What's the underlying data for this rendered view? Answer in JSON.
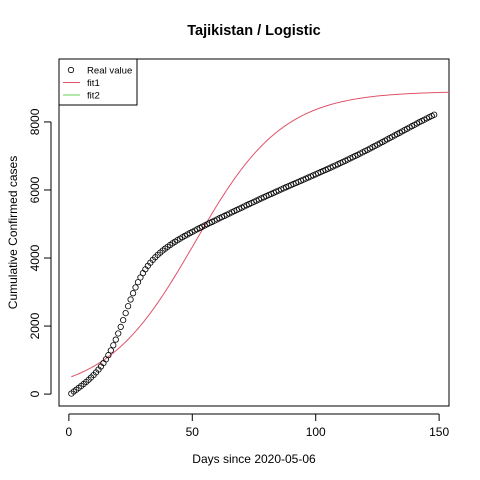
{
  "chart_data": {
    "type": "scatter",
    "title": "Tajikistan / Logistic",
    "xlabel": "Days since 2020-05-06",
    "ylabel": "Cumulative Confirmed cases",
    "xlim": [
      -4,
      154
    ],
    "ylim": [
      -350,
      9850
    ],
    "x_ticks": [
      0,
      50,
      100,
      150
    ],
    "y_ticks": [
      0,
      2000,
      4000,
      6000,
      8000
    ],
    "grid": false,
    "legend_position": "top-left",
    "legend": [
      {
        "label": "Real value",
        "symbol": "circle",
        "color": "#000000"
      },
      {
        "label": "fit1",
        "symbol": "line",
        "color": "#DF536B"
      },
      {
        "label": "fit2",
        "symbol": "line",
        "color": "#61D04F"
      }
    ],
    "series": [
      {
        "name": "Real value",
        "kind": "points",
        "color": "#000000",
        "x": [
          1,
          2,
          3,
          4,
          5,
          6,
          7,
          8,
          9,
          10,
          11,
          12,
          13,
          14,
          15,
          16,
          17,
          18,
          19,
          20,
          21,
          22,
          23,
          24,
          25,
          26,
          27,
          28,
          29,
          30,
          31,
          32,
          33,
          34,
          35,
          36,
          37,
          38,
          39,
          40,
          41,
          42,
          43,
          44,
          45,
          46,
          47,
          48,
          49,
          50,
          51,
          52,
          53,
          54,
          55,
          56,
          57,
          58,
          59,
          60,
          61,
          62,
          63,
          64,
          65,
          66,
          67,
          68,
          69,
          70,
          71,
          72,
          73,
          74,
          75,
          76,
          77,
          78,
          79,
          80,
          81,
          82,
          83,
          84,
          85,
          86,
          87,
          88,
          89,
          90,
          91,
          92,
          93,
          94,
          95,
          96,
          97,
          98,
          99,
          100,
          101,
          102,
          103,
          104,
          105,
          106,
          107,
          108,
          109,
          110,
          111,
          112,
          113,
          114,
          115,
          116,
          117,
          118,
          119,
          120,
          121,
          122,
          123,
          124,
          125,
          126,
          127,
          128,
          129,
          130,
          131,
          132,
          133,
          134,
          135,
          136,
          137,
          138,
          139,
          140,
          141,
          142,
          143,
          144,
          145,
          146,
          147,
          148
        ],
        "y": [
          15,
          76,
          128,
          183,
          239,
          297,
          358,
          421,
          488,
          559,
          636,
          720,
          811,
          911,
          1022,
          1145,
          1282,
          1434,
          1601,
          1782,
          1975,
          2176,
          2381,
          2584,
          2780,
          2964,
          3134,
          3289,
          3429,
          3555,
          3668,
          3770,
          3862,
          3946,
          4022,
          4093,
          4158,
          4219,
          4276,
          4330,
          4382,
          4431,
          4478,
          4523,
          4567,
          4610,
          4651,
          4691,
          4731,
          4769,
          4807,
          4845,
          4882,
          4918,
          4955,
          4991,
          5026,
          5062,
          5097,
          5133,
          5168,
          5203,
          5238,
          5273,
          5307,
          5342,
          5377,
          5412,
          5446,
          5481,
          5515,
          5550,
          5584,
          5618,
          5652,
          5686,
          5719,
          5753,
          5786,
          5820,
          5853,
          5885,
          5918,
          5951,
          5983,
          6016,
          6048,
          6080,
          6112,
          6144,
          6176,
          6207,
          6239,
          6271,
          6302,
          6334,
          6366,
          6397,
          6429,
          6461,
          6493,
          6525,
          6558,
          6590,
          6623,
          6656,
          6689,
          6722,
          6756,
          6790,
          6824,
          6858,
          6893,
          6928,
          6963,
          6999,
          7034,
          7071,
          7107,
          7144,
          7181,
          7218,
          7256,
          7294,
          7332,
          7370,
          7409,
          7448,
          7487,
          7526,
          7565,
          7604,
          7643,
          7682,
          7721,
          7760,
          7799,
          7838,
          7876,
          7915,
          7953,
          7991,
          8029,
          8066,
          8103,
          8140,
          8176,
          8212
        ]
      },
      {
        "name": "fit1",
        "kind": "line",
        "color": "#DF536B",
        "model": "logistic",
        "x_range": [
          1,
          154
        ],
        "L": 8900,
        "k": 0.056,
        "x0": 51
      },
      {
        "name": "fit2",
        "kind": "line",
        "color": "#61D04F",
        "x": [],
        "y": []
      }
    ]
  }
}
